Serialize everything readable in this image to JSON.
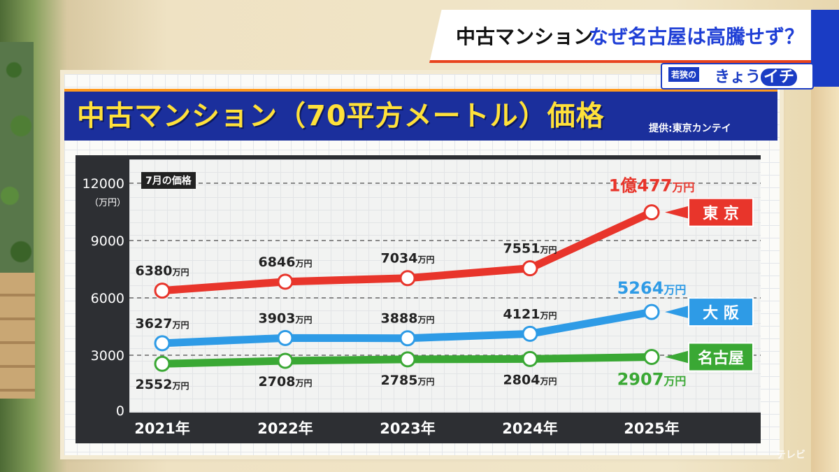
{
  "banner": {
    "topic": "中古マンション",
    "question": "なぜ名古屋は高騰せず？",
    "program_small": "若狭の",
    "program_big_a": "きょう",
    "program_big_b": "イチ"
  },
  "board": {
    "title": "中古マンション（70平方メートル）価格",
    "source": "提供:東京カンテイ",
    "badge": "7月の価格",
    "unit": "（万円）"
  },
  "colors": {
    "tokyo": "#e8352b",
    "osaka": "#2e9be6",
    "nagoya": "#3aa834",
    "title_bar": "#1b2f9c",
    "title_text": "#ffe13a"
  },
  "chart_data": {
    "type": "line",
    "x": [
      "2021年",
      "2022年",
      "2023年",
      "2024年",
      "2025年"
    ],
    "ylim": [
      0,
      12000
    ],
    "yticks": [
      "0",
      "3000",
      "6000",
      "9000",
      "12000"
    ],
    "ylabel": "（万円）",
    "grid": true,
    "series": [
      {
        "name": "東 京",
        "values": [
          6380,
          6846,
          7034,
          7551,
          10477
        ],
        "labels": [
          "6380",
          "6846",
          "7034",
          "7551",
          "1億477"
        ],
        "unit": "万円"
      },
      {
        "name": "大 阪",
        "values": [
          3627,
          3903,
          3888,
          4121,
          5264
        ],
        "labels": [
          "3627",
          "3903",
          "3888",
          "4121",
          "5264"
        ],
        "unit": "万円"
      },
      {
        "name": "名古屋",
        "values": [
          2552,
          2708,
          2785,
          2804,
          2907
        ],
        "labels": [
          "2552",
          "2708",
          "2785",
          "2804",
          "2907"
        ],
        "unit": "万円"
      }
    ]
  },
  "watermark": "テレビ"
}
